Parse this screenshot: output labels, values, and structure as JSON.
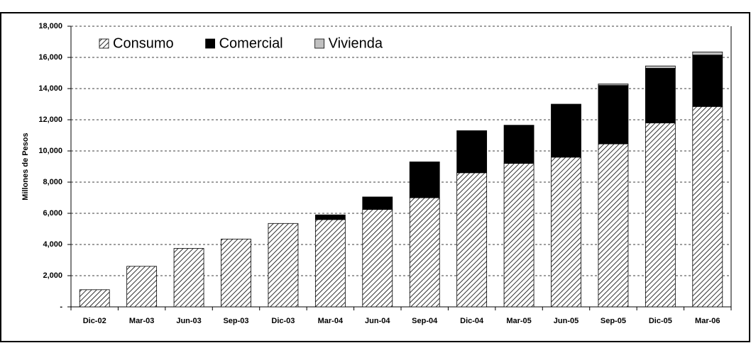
{
  "chart_data": {
    "type": "stacked_bar",
    "y_label": "Millones de Pesos",
    "categories": [
      "Dic-02",
      "Mar-03",
      "Jun-03",
      "Sep-03",
      "Dic-03",
      "Mar-04",
      "Jun-04",
      "Sep-04",
      "Dic-04",
      "Mar-05",
      "Jun-05",
      "Sep-05",
      "Dic-05",
      "Mar-06"
    ],
    "series": [
      {
        "name": "Consumo",
        "color": "#ffffff",
        "pattern": "hatch",
        "values": [
          1100,
          2600,
          3750,
          4350,
          5350,
          5600,
          6250,
          7000,
          8600,
          9200,
          9600,
          10450,
          11800,
          12850
        ]
      },
      {
        "name": "Comercial",
        "color": "#000000",
        "values": [
          0,
          0,
          0,
          0,
          0,
          300,
          800,
          2300,
          2700,
          2450,
          3400,
          3750,
          3500,
          3300
        ]
      },
      {
        "name": "Vivienda",
        "color": "#c0c0c0",
        "values": [
          0,
          0,
          0,
          0,
          0,
          0,
          0,
          0,
          0,
          0,
          0,
          100,
          150,
          200
        ]
      }
    ],
    "ylim": [
      0,
      18000
    ],
    "yticks": [
      {
        "value": 0,
        "label": "-"
      },
      {
        "value": 2000,
        "label": "2,000"
      },
      {
        "value": 4000,
        "label": "4,000"
      },
      {
        "value": 6000,
        "label": "6,000"
      },
      {
        "value": 8000,
        "label": "8,000"
      },
      {
        "value": 10000,
        "label": "10,000"
      },
      {
        "value": 12000,
        "label": "12,000"
      },
      {
        "value": 14000,
        "label": "14,000"
      },
      {
        "value": 16000,
        "label": "16,000"
      },
      {
        "value": 18000,
        "label": "18,000"
      }
    ],
    "grid": true,
    "legend": "top-left"
  }
}
